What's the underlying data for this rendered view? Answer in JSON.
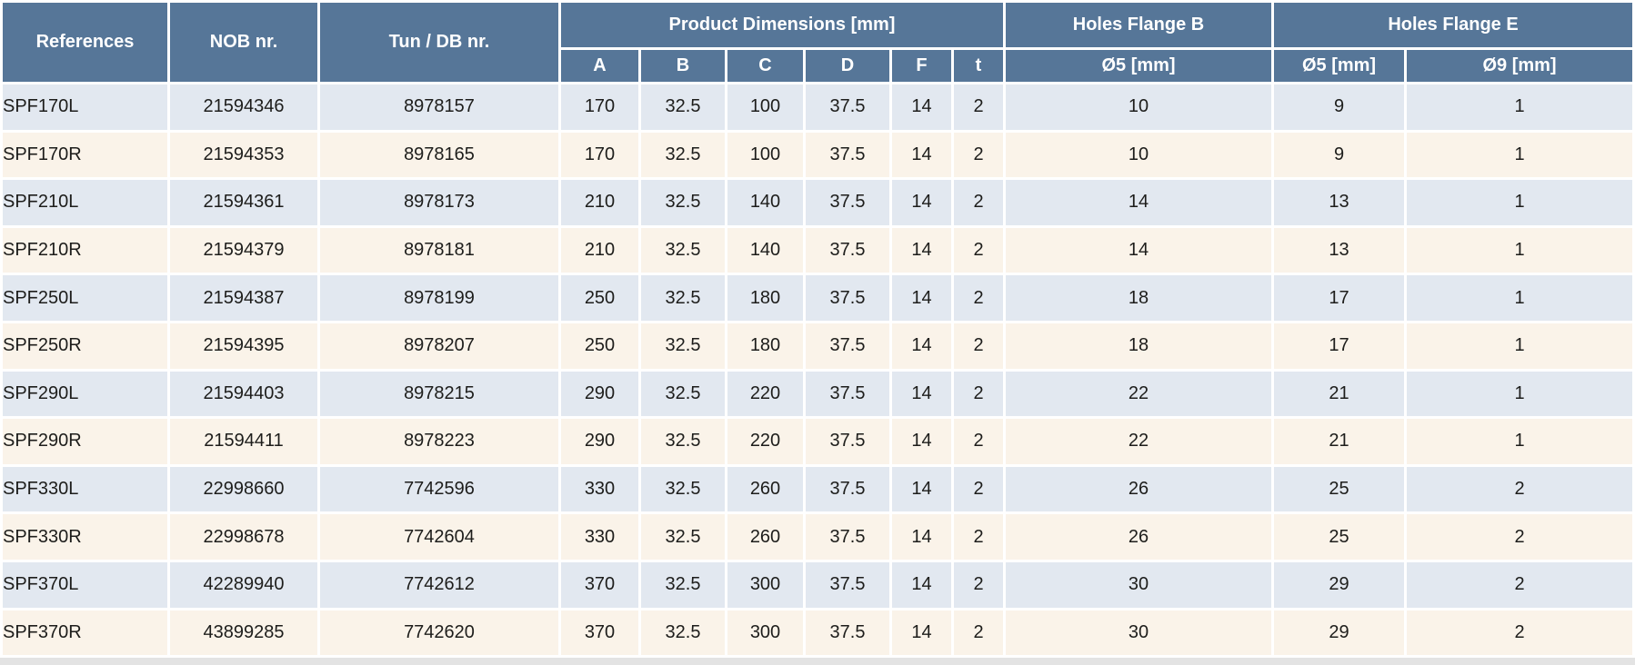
{
  "chart_data": {
    "type": "table",
    "column_groups": [
      {
        "label": "References",
        "rowspan": 2
      },
      {
        "label": "NOB nr.",
        "rowspan": 2
      },
      {
        "label": "Tun / DB nr.",
        "rowspan": 2
      },
      {
        "label": "Product Dimensions [mm]",
        "colspan": 6
      },
      {
        "label": "Holes Flange B",
        "colspan": 1
      },
      {
        "label": "Holes Flange E",
        "colspan": 2
      }
    ],
    "sub_headers": [
      "A",
      "B",
      "C",
      "D",
      "F",
      "t",
      "Ø5 [mm]",
      "Ø5 [mm]",
      "Ø9 [mm]"
    ],
    "rows": [
      [
        "SPF170L",
        21594346,
        8978157,
        170,
        32.5,
        100,
        37.5,
        14,
        2,
        10,
        9,
        1
      ],
      [
        "SPF170R",
        21594353,
        8978165,
        170,
        32.5,
        100,
        37.5,
        14,
        2,
        10,
        9,
        1
      ],
      [
        "SPF210L",
        21594361,
        8978173,
        210,
        32.5,
        140,
        37.5,
        14,
        2,
        14,
        13,
        1
      ],
      [
        "SPF210R",
        21594379,
        8978181,
        210,
        32.5,
        140,
        37.5,
        14,
        2,
        14,
        13,
        1
      ],
      [
        "SPF250L",
        21594387,
        8978199,
        250,
        32.5,
        180,
        37.5,
        14,
        2,
        18,
        17,
        1
      ],
      [
        "SPF250R",
        21594395,
        8978207,
        250,
        32.5,
        180,
        37.5,
        14,
        2,
        18,
        17,
        1
      ],
      [
        "SPF290L",
        21594403,
        8978215,
        290,
        32.5,
        220,
        37.5,
        14,
        2,
        22,
        21,
        1
      ],
      [
        "SPF290R",
        21594411,
        8978223,
        290,
        32.5,
        220,
        37.5,
        14,
        2,
        22,
        21,
        1
      ],
      [
        "SPF330L",
        22998660,
        7742596,
        330,
        32.5,
        260,
        37.5,
        14,
        2,
        26,
        25,
        2
      ],
      [
        "SPF330R",
        22998678,
        7742604,
        330,
        32.5,
        260,
        37.5,
        14,
        2,
        26,
        25,
        2
      ],
      [
        "SPF370L",
        42289940,
        7742612,
        370,
        32.5,
        300,
        37.5,
        14,
        2,
        30,
        29,
        2
      ],
      [
        "SPF370R",
        43899285,
        7742620,
        370,
        32.5,
        300,
        37.5,
        14,
        2,
        30,
        29,
        2
      ]
    ],
    "partial_next_row_visible": true
  },
  "colors": {
    "header_bg": "#567698",
    "header_text": "#ffffff",
    "row_alt_blue": "#e2e8f0",
    "row_alt_cream": "#faf3e9",
    "body_text": "#1d1d1b",
    "divider": "#ffffff",
    "partial_row_bg": "#e3e3e3"
  }
}
